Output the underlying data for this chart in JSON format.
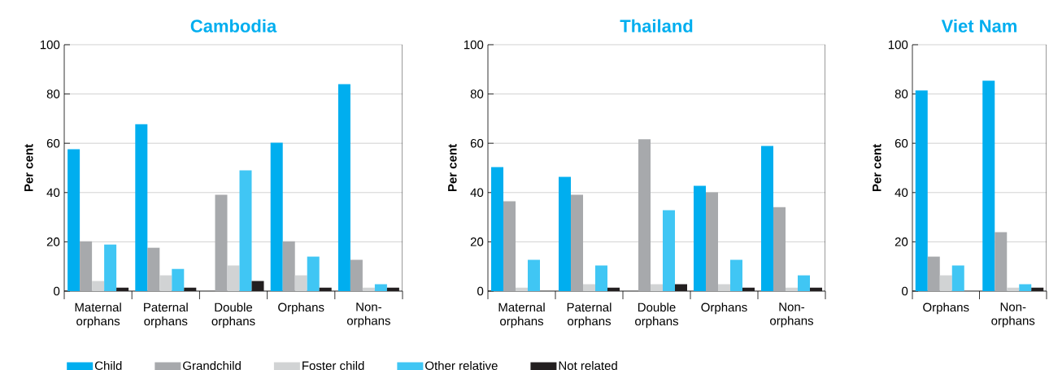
{
  "chart_data": [
    {
      "type": "bar",
      "title": "Cambodia",
      "ylabel": "Per cent",
      "categories": [
        "Maternal orphans",
        "Paternal orphans",
        "Double orphans",
        "Orphans",
        "Non-orphans"
      ],
      "ylim": [
        0,
        100
      ],
      "yticks": [
        0,
        20,
        40,
        60,
        80,
        100
      ],
      "grid": "y",
      "legend": "bottom",
      "series": [
        {
          "name": "Child",
          "color": "#00aeef",
          "values": [
            57.6,
            67.7,
            null,
            60.2,
            84.0
          ]
        },
        {
          "name": "Grandchild",
          "color": "#a7a9ac",
          "values": [
            20.2,
            17.6,
            39.1,
            20.2,
            12.7
          ]
        },
        {
          "name": "Foster child",
          "color": "#d1d3d4",
          "values": [
            4.1,
            6.4,
            10.4,
            6.4,
            1.4
          ]
        },
        {
          "name": "Other relative",
          "color": "#40c6f4",
          "values": [
            18.9,
            9.0,
            49.0,
            14.0,
            2.8
          ]
        },
        {
          "name": "Not related",
          "color": "#231f20",
          "values": [
            1.4,
            1.4,
            4.1,
            1.4,
            1.4
          ]
        }
      ]
    },
    {
      "type": "bar",
      "title": "Thailand",
      "ylabel": "Per cent",
      "categories": [
        "Maternal orphans",
        "Paternal orphans",
        "Double orphans",
        "Orphans",
        "Non-orphans"
      ],
      "ylim": [
        0,
        100
      ],
      "yticks": [
        0,
        20,
        40,
        60,
        80,
        100
      ],
      "grid": "y",
      "series": [
        {
          "color": "#00aeef",
          "values": [
            50.3,
            46.4,
            null,
            42.7,
            58.9
          ]
        },
        {
          "color": "#a7a9ac",
          "values": [
            36.5,
            39.1,
            61.6,
            40.1,
            34.1
          ]
        },
        {
          "color": "#d1d3d4",
          "values": [
            1.4,
            2.8,
            2.8,
            2.8,
            1.4
          ]
        },
        {
          "color": "#40c6f4",
          "values": [
            12.7,
            10.4,
            32.8,
            12.7,
            6.4
          ]
        },
        {
          "color": "#231f20",
          "values": [
            null,
            1.4,
            2.8,
            1.4,
            1.4
          ]
        }
      ]
    },
    {
      "type": "bar",
      "title": "Viet Nam",
      "ylabel": "Per cent",
      "categories": [
        "Orphans",
        "Non-orphans"
      ],
      "ylim": [
        0,
        100
      ],
      "yticks": [
        0,
        20,
        40,
        60,
        80,
        100
      ],
      "grid": "y",
      "series": [
        {
          "color": "#00aeef",
          "values": [
            81.4,
            85.4
          ]
        },
        {
          "color": "#a7a9ac",
          "values": [
            14.0,
            23.9
          ]
        },
        {
          "color": "#d1d3d4",
          "values": [
            6.4,
            1.4
          ]
        },
        {
          "color": "#40c6f4",
          "values": [
            10.4,
            2.8
          ]
        },
        {
          "color": "#231f20",
          "values": [
            null,
            1.4
          ]
        }
      ]
    }
  ]
}
